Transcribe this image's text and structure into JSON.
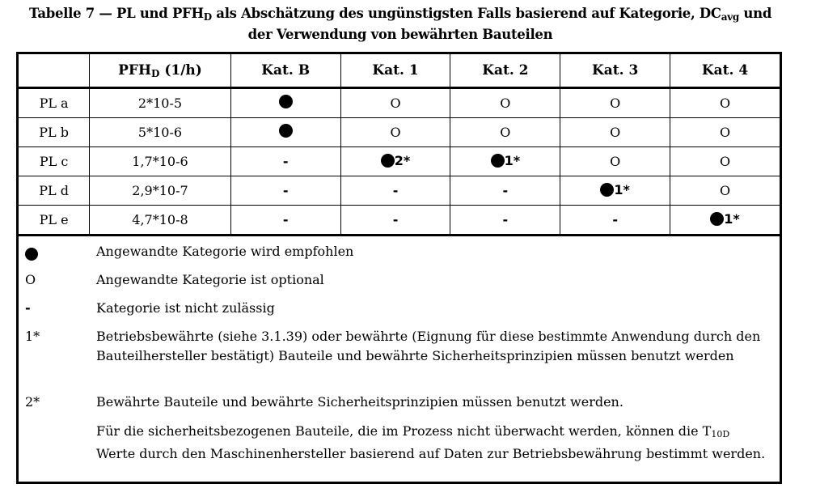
{
  "title": {
    "line1_part1": "Tabelle 7 — PL und PFH",
    "line1_sub1": "D",
    "line1_part2": " als Abschätzung des ungünstigsten Falls basierend auf Kategorie, DC",
    "line1_sub2": "avg",
    "line1_part3": " und",
    "line2": "der Verwendung von bewährten Bauteilen"
  },
  "table": {
    "header": {
      "c0": "",
      "pfh_main": "PFH",
      "pfh_sub": "D",
      "pfh_unit": " (1/h)",
      "kat_b": "Kat. B",
      "kat_1": "Kat. 1",
      "kat_2": "Kat. 2",
      "kat_3": "Kat. 3",
      "kat_4": "Kat. 4"
    },
    "rows": [
      {
        "pl": "PL a",
        "pfh": "2*10-5",
        "cells": [
          {
            "sym": "dot",
            "note": ""
          },
          {
            "sym": "text",
            "text": "O"
          },
          {
            "sym": "text",
            "text": "O"
          },
          {
            "sym": "text",
            "text": "O"
          },
          {
            "sym": "text",
            "text": "O"
          }
        ]
      },
      {
        "pl": "PL b",
        "pfh": "5*10-6",
        "cells": [
          {
            "sym": "dot",
            "note": ""
          },
          {
            "sym": "text",
            "text": "O"
          },
          {
            "sym": "text",
            "text": "O"
          },
          {
            "sym": "text",
            "text": "O"
          },
          {
            "sym": "text",
            "text": "O"
          }
        ]
      },
      {
        "pl": "PL c",
        "pfh": "1,7*10-6",
        "cells": [
          {
            "sym": "dash",
            "text": "-"
          },
          {
            "sym": "dot",
            "note": "2*"
          },
          {
            "sym": "dot",
            "note": "1*"
          },
          {
            "sym": "text",
            "text": "O"
          },
          {
            "sym": "text",
            "text": "O"
          }
        ]
      },
      {
        "pl": "PL d",
        "pfh": "2,9*10-7",
        "cells": [
          {
            "sym": "dash",
            "text": "-"
          },
          {
            "sym": "dash",
            "text": "-"
          },
          {
            "sym": "dash",
            "text": "-"
          },
          {
            "sym": "dot",
            "note": "1*"
          },
          {
            "sym": "text",
            "text": "O"
          }
        ]
      },
      {
        "pl": "PL e",
        "pfh": "4,7*10-8",
        "cells": [
          {
            "sym": "dash",
            "text": "-"
          },
          {
            "sym": "dash",
            "text": "-"
          },
          {
            "sym": "dash",
            "text": "-"
          },
          {
            "sym": "dash",
            "text": "-"
          },
          {
            "sym": "dot",
            "note": "1*"
          }
        ]
      }
    ]
  },
  "legend": [
    {
      "symbol": "dot",
      "text": "Angewandte Kategorie wird empfohlen"
    },
    {
      "symbol": "O",
      "text": "Angewandte Kategorie ist optional"
    },
    {
      "symbol": "-",
      "text": "Kategorie ist nicht zulässig"
    },
    {
      "symbol": "1*",
      "text": "Betriebsbewährte (siehe 3.1.39) oder bewährte (Eignung für diese bestimmte Anwendung durch den Bauteilhersteller bestätigt) Bauteile und bewährte Sicherheitsprinzipien müssen benutzt werden"
    },
    {
      "symbol": "2*",
      "text": "Bewährte Bauteile und bewährte Sicherheitsprinzipien müssen benutzt werden."
    },
    {
      "symbol": "",
      "text_part1": "Für die sicherheitsbezogenen Bauteile, die im Prozess nicht überwacht werden, können die T",
      "text_sub": "10D",
      "text_part2": " Werte durch den Maschinenhersteller basierend auf Daten zur Betriebsbewährung bestimmt werden."
    }
  ]
}
